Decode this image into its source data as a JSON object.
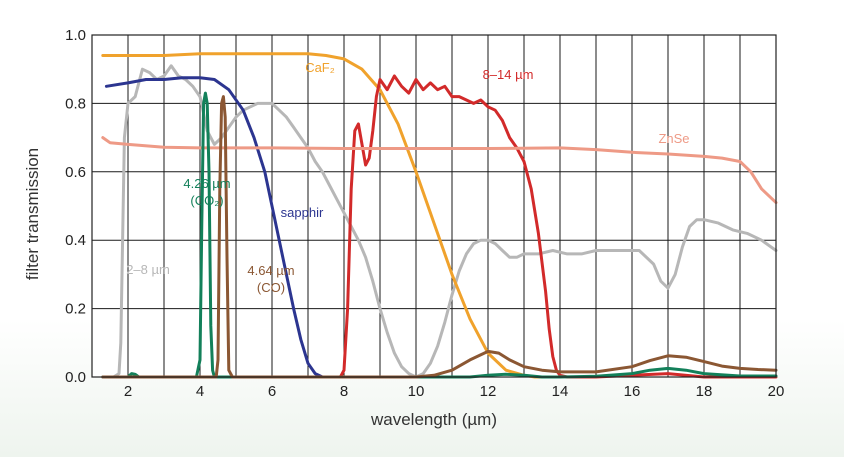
{
  "chart_data": {
    "type": "line",
    "title": "",
    "xlabel": "wavelength (µm)",
    "ylabel": "filter transmission",
    "xlim": [
      1,
      20
    ],
    "ylim": [
      0,
      1
    ],
    "xticks": [
      2,
      4,
      6,
      8,
      10,
      12,
      14,
      16,
      18,
      20
    ],
    "yticks": [
      "0.0",
      "0.2",
      "0.4",
      "0.6",
      "0.8",
      "1.0"
    ],
    "grid": true,
    "series": [
      {
        "name": "2–8 µm",
        "color": "#b7b7b7",
        "label_lines": [
          "2–8 µm"
        ],
        "x": [
          1.4,
          1.6,
          1.75,
          1.8,
          1.85,
          1.9,
          2.0,
          2.2,
          2.4,
          2.6,
          2.8,
          3.0,
          3.2,
          3.4,
          3.6,
          3.8,
          4.0,
          4.2,
          4.4,
          4.6,
          4.8,
          5.0,
          5.2,
          5.4,
          5.6,
          5.8,
          6.0,
          6.2,
          6.4,
          6.6,
          6.8,
          7.0,
          7.2,
          7.4,
          7.6,
          7.8,
          8.0,
          8.2,
          8.4,
          8.6,
          8.8,
          9.0,
          9.2,
          9.4,
          9.6,
          9.8,
          10.0,
          10.2,
          10.4,
          10.6,
          10.8,
          11.0,
          11.2,
          11.4,
          11.6,
          11.8,
          12.0,
          12.2,
          12.4,
          12.6,
          12.8,
          13.0,
          13.4,
          13.8,
          14.2,
          14.6,
          15.0,
          15.4,
          15.8,
          16.2,
          16.6,
          16.8,
          17.0,
          17.2,
          17.4,
          17.6,
          17.8,
          18.0,
          18.4,
          18.8,
          19.2,
          19.6,
          20.0
        ],
        "y": [
          0.0,
          0.0,
          0.01,
          0.1,
          0.4,
          0.7,
          0.8,
          0.82,
          0.9,
          0.89,
          0.87,
          0.88,
          0.91,
          0.88,
          0.87,
          0.85,
          0.82,
          0.72,
          0.68,
          0.7,
          0.73,
          0.76,
          0.78,
          0.79,
          0.8,
          0.8,
          0.8,
          0.78,
          0.76,
          0.73,
          0.7,
          0.67,
          0.63,
          0.6,
          0.56,
          0.52,
          0.48,
          0.44,
          0.4,
          0.35,
          0.28,
          0.2,
          0.13,
          0.07,
          0.03,
          0.01,
          0.0,
          0.01,
          0.04,
          0.09,
          0.16,
          0.24,
          0.31,
          0.36,
          0.39,
          0.4,
          0.4,
          0.39,
          0.37,
          0.35,
          0.35,
          0.36,
          0.36,
          0.37,
          0.36,
          0.36,
          0.37,
          0.37,
          0.37,
          0.37,
          0.33,
          0.28,
          0.26,
          0.3,
          0.38,
          0.44,
          0.46,
          0.46,
          0.45,
          0.43,
          0.42,
          0.4,
          0.37
        ]
      },
      {
        "name": "CaF₂",
        "color": "#f0a22c",
        "label_lines": [
          "CaF₂"
        ],
        "x": [
          1.3,
          2,
          3,
          4,
          5,
          6,
          7,
          7.5,
          8,
          8.5,
          9,
          9.5,
          10,
          10.5,
          11,
          11.5,
          12,
          12.5,
          13,
          13.3,
          13.6
        ],
        "y": [
          0.94,
          0.94,
          0.94,
          0.945,
          0.945,
          0.945,
          0.945,
          0.94,
          0.93,
          0.9,
          0.84,
          0.74,
          0.6,
          0.45,
          0.3,
          0.17,
          0.07,
          0.02,
          0.005,
          0.0,
          0.0
        ]
      },
      {
        "name": "sapphir",
        "color": "#2c3590",
        "label_lines": [
          "sapphir"
        ],
        "x": [
          1.4,
          2,
          2.5,
          3,
          3.5,
          4,
          4.4,
          4.8,
          5.2,
          5.5,
          5.8,
          6.0,
          6.2,
          6.4,
          6.6,
          6.8,
          7.0,
          7.2,
          7.4,
          7.6
        ],
        "y": [
          0.85,
          0.86,
          0.87,
          0.87,
          0.875,
          0.875,
          0.87,
          0.84,
          0.78,
          0.7,
          0.6,
          0.5,
          0.4,
          0.3,
          0.2,
          0.11,
          0.04,
          0.01,
          0.0,
          0.0
        ]
      },
      {
        "name": "8–14 µm",
        "color": "#d22a2a",
        "label_lines": [
          "8–14 µm"
        ],
        "x": [
          7.6,
          7.9,
          8.0,
          8.1,
          8.2,
          8.3,
          8.4,
          8.5,
          8.6,
          8.7,
          8.8,
          8.9,
          9.0,
          9.2,
          9.4,
          9.6,
          9.8,
          10.0,
          10.2,
          10.4,
          10.6,
          10.8,
          11.0,
          11.2,
          11.4,
          11.6,
          11.8,
          12.0,
          12.2,
          12.4,
          12.6,
          12.8,
          13.0,
          13.2,
          13.4,
          13.6,
          13.7,
          13.8,
          13.9,
          14.0,
          14.2,
          14.6,
          15.0,
          16.0,
          17.0,
          18.0,
          19.0,
          20.0
        ],
        "y": [
          0.0,
          0.0,
          0.02,
          0.2,
          0.55,
          0.72,
          0.74,
          0.68,
          0.62,
          0.64,
          0.72,
          0.82,
          0.87,
          0.84,
          0.88,
          0.85,
          0.83,
          0.87,
          0.84,
          0.86,
          0.84,
          0.85,
          0.82,
          0.82,
          0.81,
          0.8,
          0.81,
          0.79,
          0.78,
          0.75,
          0.7,
          0.67,
          0.63,
          0.55,
          0.42,
          0.25,
          0.14,
          0.06,
          0.02,
          0.005,
          0.0,
          0.0,
          0.0,
          0.005,
          0.01,
          0.0,
          0.0,
          0.0
        ]
      },
      {
        "name": "ZnSe",
        "color": "#ee9a86",
        "label_lines": [
          "ZnSe"
        ],
        "x": [
          1.3,
          1.5,
          2,
          3,
          4,
          6,
          8,
          10,
          12,
          14,
          15,
          16,
          17,
          18,
          18.5,
          19,
          19.3,
          19.6,
          20.0
        ],
        "y": [
          0.7,
          0.685,
          0.68,
          0.672,
          0.67,
          0.67,
          0.668,
          0.668,
          0.668,
          0.67,
          0.665,
          0.657,
          0.652,
          0.645,
          0.64,
          0.63,
          0.6,
          0.55,
          0.51
        ]
      },
      {
        "name": "4.26 µm (CO₂)",
        "color": "#13805a",
        "label_lines": [
          "4.26 µm",
          "(CO₂)"
        ],
        "x": [
          1.3,
          2.0,
          2.1,
          2.2,
          2.3,
          2.5,
          3.0,
          3.9,
          4.0,
          4.05,
          4.1,
          4.15,
          4.2,
          4.25,
          4.3,
          4.35,
          4.4,
          4.5,
          5,
          7,
          9,
          10,
          11,
          11.5,
          12,
          12.5,
          13,
          13.5,
          14,
          15,
          16,
          16.5,
          17,
          17.5,
          18,
          19,
          20
        ],
        "y": [
          0.0,
          0.0,
          0.01,
          0.008,
          0.0,
          0.0,
          0.0,
          0.0,
          0.05,
          0.45,
          0.8,
          0.83,
          0.8,
          0.6,
          0.15,
          0.02,
          0.0,
          0.0,
          0.0,
          0.0,
          0.0,
          0.0,
          0.0,
          0.0,
          0.005,
          0.008,
          0.005,
          0.0,
          0.0,
          0.002,
          0.01,
          0.02,
          0.025,
          0.02,
          0.01,
          0.003,
          0.003
        ]
      },
      {
        "name": "4.64 µm (CO)",
        "color": "#8b5733",
        "label_lines": [
          "4.64 µm",
          "(CO)"
        ],
        "x": [
          1.3,
          4.3,
          4.45,
          4.5,
          4.55,
          4.6,
          4.65,
          4.7,
          4.75,
          4.8,
          4.9,
          5,
          6,
          8,
          10,
          10.5,
          11,
          11.5,
          12,
          12.3,
          12.6,
          13,
          13.5,
          14,
          15,
          16,
          16.5,
          17,
          17.5,
          18,
          18.5,
          19,
          19.5,
          20
        ],
        "y": [
          0.0,
          0.0,
          0.0,
          0.05,
          0.55,
          0.8,
          0.82,
          0.76,
          0.35,
          0.02,
          0.0,
          0.0,
          0.0,
          0.0,
          0.0,
          0.005,
          0.02,
          0.05,
          0.075,
          0.07,
          0.05,
          0.03,
          0.02,
          0.015,
          0.015,
          0.03,
          0.048,
          0.062,
          0.058,
          0.045,
          0.032,
          0.025,
          0.022,
          0.02
        ]
      }
    ]
  }
}
